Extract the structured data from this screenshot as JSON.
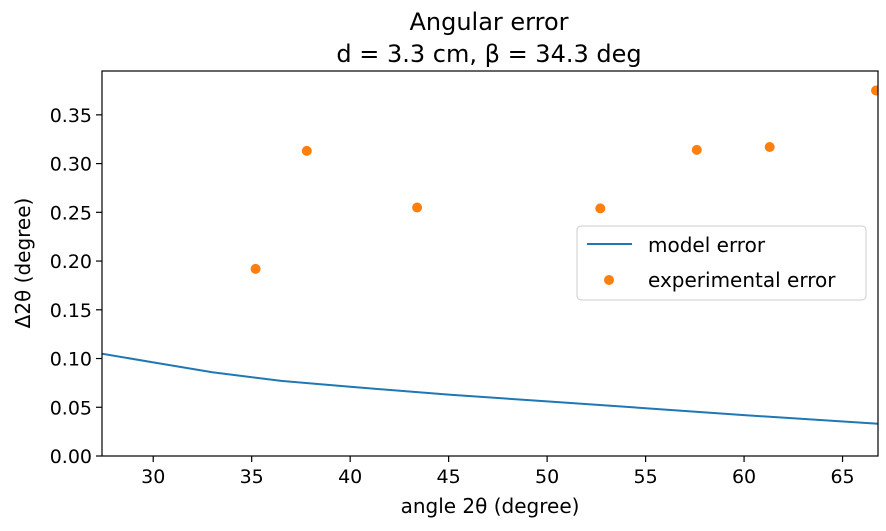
{
  "chart_data": {
    "type": "line+scatter",
    "title_line1": "Angular error",
    "title_line2": "d = 3.3 cm, β = 34.3 deg",
    "xlabel": "angle 2θ (degree)",
    "ylabel": "Δ2θ (degree)",
    "xlim": [
      27.4,
      66.8
    ],
    "ylim": [
      0.0,
      0.395
    ],
    "xticks": [
      30,
      35,
      40,
      45,
      50,
      55,
      60,
      65
    ],
    "yticks": [
      0.0,
      0.05,
      0.1,
      0.15,
      0.2,
      0.25,
      0.3,
      0.35
    ],
    "xtick_labels": [
      "30",
      "35",
      "40",
      "45",
      "50",
      "55",
      "60",
      "65"
    ],
    "ytick_labels": [
      "0.00",
      "0.05",
      "0.10",
      "0.15",
      "0.20",
      "0.25",
      "0.30",
      "0.35"
    ],
    "grid": false,
    "legend_position": "center-right",
    "series": [
      {
        "name": "model error",
        "kind": "line",
        "color": "#1f77b4",
        "x": [
          27.4,
          30,
          33,
          36.5,
          40,
          45,
          50,
          55,
          60,
          66.8
        ],
        "y": [
          0.105,
          0.096,
          0.086,
          0.077,
          0.071,
          0.063,
          0.056,
          0.049,
          0.042,
          0.033
        ]
      },
      {
        "name": "experimental error",
        "kind": "scatter",
        "color": "#ff7f0e",
        "x": [
          35.2,
          37.8,
          43.4,
          52.7,
          57.6,
          61.3,
          66.7
        ],
        "y": [
          0.192,
          0.313,
          0.255,
          0.254,
          0.314,
          0.317,
          0.375
        ]
      }
    ]
  }
}
